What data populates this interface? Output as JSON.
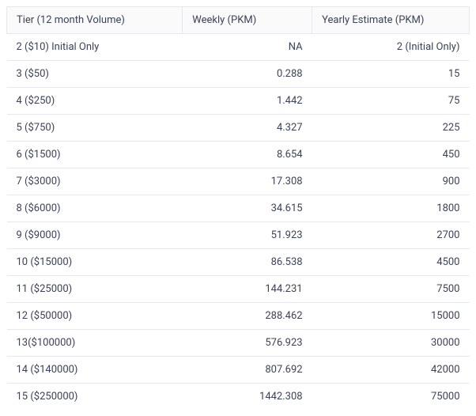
{
  "table": {
    "type": "table",
    "background_color": "#ffffff",
    "header_background": "#fafafa",
    "border_color": "#e6e8eb",
    "text_color": "#3c4257",
    "font_size": 13,
    "columns": [
      {
        "label": "Tier (12 month Volume)",
        "align": "left",
        "width_pct": 38
      },
      {
        "label": "Weekly (PKM)",
        "align": "right",
        "width_pct": 28
      },
      {
        "label": "Yearly Estimate (PKM)",
        "align": "right",
        "width_pct": 34
      }
    ],
    "rows": [
      [
        "2 ($10) Initial Only",
        "NA",
        "2 (Initial Only)"
      ],
      [
        "3 ($50)",
        "0.288",
        "15"
      ],
      [
        "4 ($250)",
        "1.442",
        "75"
      ],
      [
        "5 ($750)",
        "4.327",
        "225"
      ],
      [
        "6 ($1500)",
        "8.654",
        "450"
      ],
      [
        "7 ($3000)",
        "17.308",
        "900"
      ],
      [
        "8 ($6000)",
        "34.615",
        "1800"
      ],
      [
        "9 ($9000)",
        "51.923",
        "2700"
      ],
      [
        "10 ($15000)",
        "86.538",
        "4500"
      ],
      [
        "11 ($25000)",
        "144.231",
        "7500"
      ],
      [
        "12 ($50000)",
        "288.462",
        "15000"
      ],
      [
        "13($100000)",
        "576.923",
        "30000"
      ],
      [
        "14 ($140000)",
        "807.692",
        "42000"
      ],
      [
        "15 ($250000)",
        "1442.308",
        "75000"
      ]
    ]
  }
}
